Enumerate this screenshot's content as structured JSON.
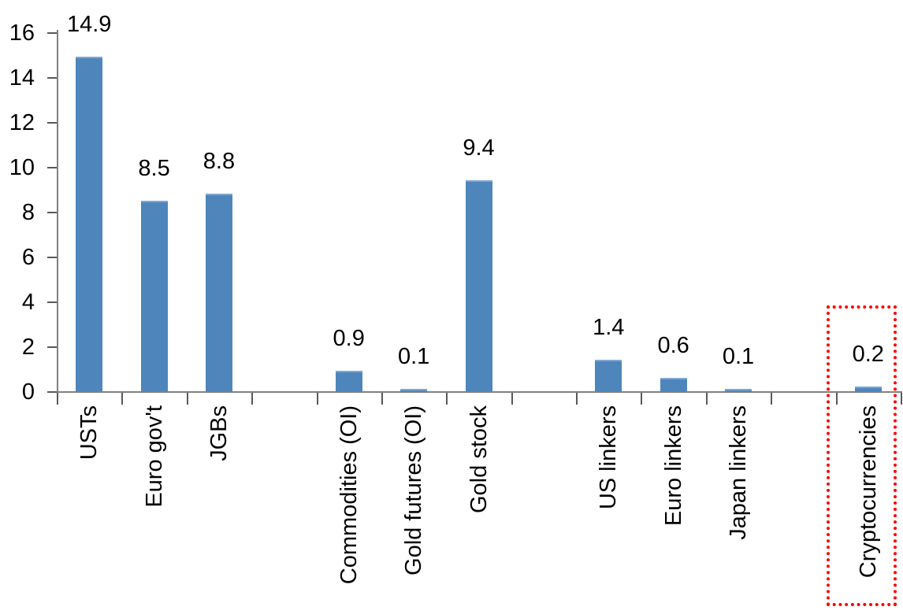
{
  "chart_data": {
    "type": "bar",
    "title": "",
    "xlabel": "",
    "ylabel": "",
    "categories": [
      "USTs",
      "Euro gov't",
      "JGBs",
      "Commodities (OI)",
      "Gold futures (OI)",
      "Gold stock",
      "US linkers",
      "Euro linkers",
      "Japan linkers",
      "Cryptocurrencies"
    ],
    "values": [
      14.9,
      8.5,
      8.8,
      0.9,
      0.1,
      9.4,
      1.4,
      0.6,
      0.1,
      0.2
    ],
    "value_labels": [
      "14.9",
      "8.5",
      "8.8",
      "0.9",
      "0.1",
      "9.4",
      "1.4",
      "0.6",
      "0.1",
      "0.2"
    ],
    "groups": [
      [
        "USTs",
        "Euro gov't",
        "JGBs"
      ],
      [
        "Commodities (OI)",
        "Gold futures (OI)",
        "Gold stock"
      ],
      [
        "US linkers",
        "Euro linkers",
        "Japan linkers"
      ],
      [
        "Cryptocurrencies"
      ]
    ],
    "ylim": [
      0,
      16
    ],
    "yticks": [
      "0",
      "2",
      "4",
      "6",
      "8",
      "10",
      "12",
      "14",
      "16"
    ],
    "grid": false,
    "legend": false,
    "bar_color": "#4E86BC",
    "axis_color": "#808080",
    "tick_color": "#595959",
    "highlight": {
      "category": "Cryptocurrencies",
      "style": "red dotted outline box",
      "color": "#FE0000"
    }
  }
}
